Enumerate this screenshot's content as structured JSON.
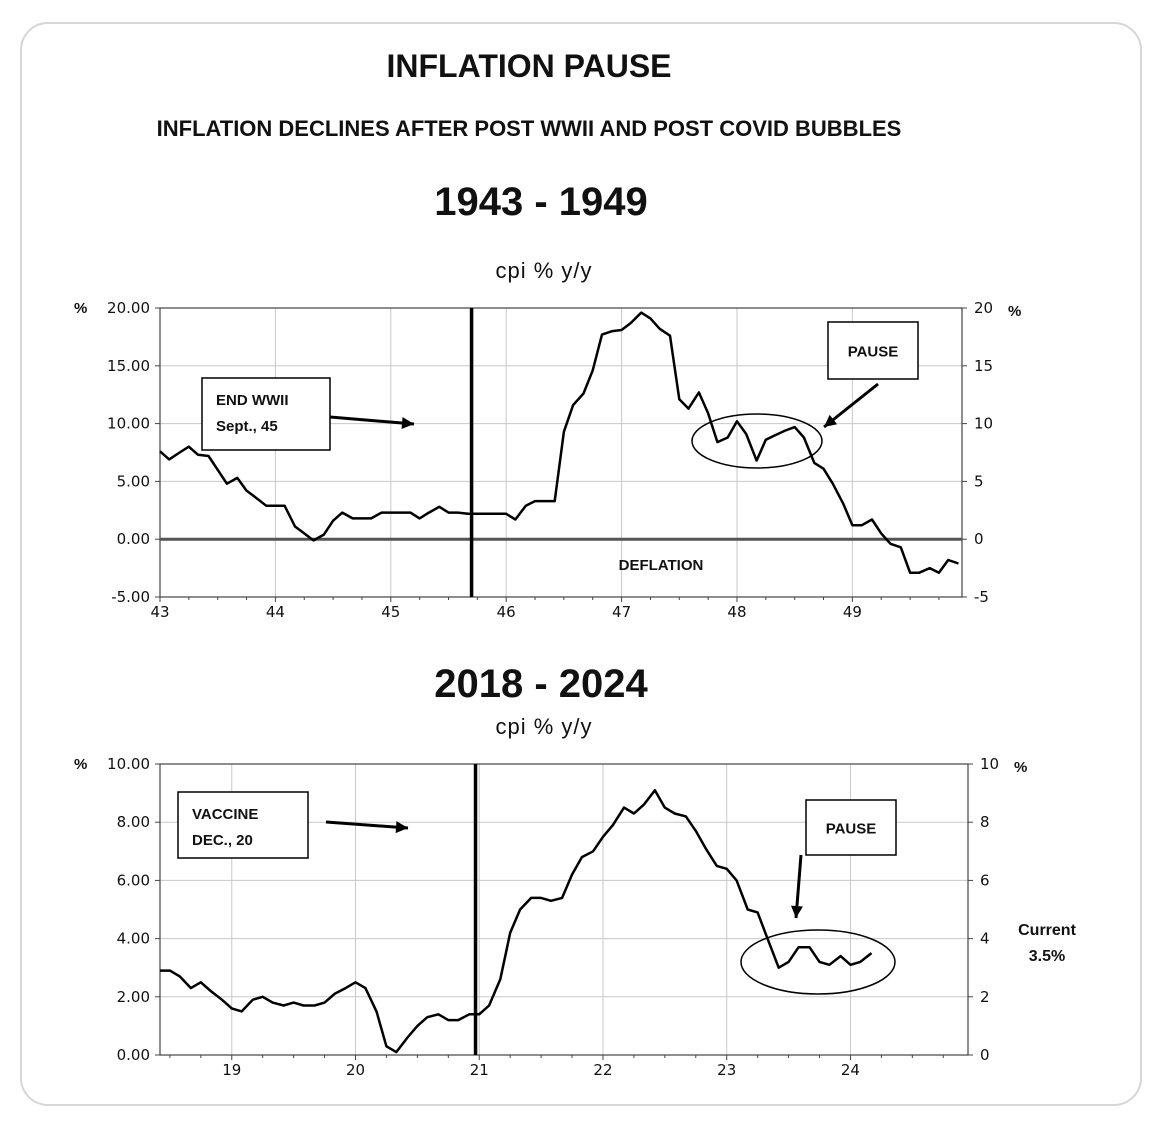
{
  "title": "INFLATION PAUSE",
  "subtitle": "INFLATION DECLINES AFTER POST WWII AND POST COVID BUBBLES",
  "chart_data": [
    {
      "type": "line",
      "period_title": "1943 - 1949",
      "unit_title": "cpi % y/y",
      "left_axis_unit": "%",
      "right_axis_unit": "%",
      "xlim": [
        43,
        49.95
      ],
      "ylim": [
        -5,
        20
      ],
      "x_ticks": [
        43,
        44,
        45,
        46,
        47,
        48,
        49
      ],
      "x_tick_labels": [
        "43",
        "44",
        "45",
        "46",
        "47",
        "48",
        "49"
      ],
      "y_ticks_left": [
        20,
        15,
        10,
        5,
        0,
        -5
      ],
      "y_tick_labels_left": [
        "20.00",
        "15.00",
        "10.00",
        "5.00",
        "0.00",
        "-5.00"
      ],
      "y_ticks_right": [
        20,
        15,
        10,
        5,
        0,
        -5
      ],
      "y_tick_labels_right": [
        "20",
        "15",
        "10",
        "5",
        "0",
        "-5"
      ],
      "grid": true,
      "reference_line_y": 0,
      "event_line_x": 45.7,
      "series": [
        {
          "name": "cpi % y/y",
          "x": [
            43.0,
            43.08,
            43.17,
            43.25,
            43.33,
            43.42,
            43.5,
            43.58,
            43.67,
            43.75,
            43.83,
            43.92,
            44.0,
            44.08,
            44.17,
            44.25,
            44.33,
            44.42,
            44.5,
            44.58,
            44.67,
            44.75,
            44.83,
            44.92,
            45.0,
            45.08,
            45.17,
            45.25,
            45.33,
            45.42,
            45.5,
            45.58,
            45.67,
            45.75,
            45.83,
            45.92,
            46.0,
            46.08,
            46.17,
            46.25,
            46.33,
            46.42,
            46.5,
            46.58,
            46.67,
            46.75,
            46.83,
            46.92,
            47.0,
            47.08,
            47.17,
            47.25,
            47.33,
            47.42,
            47.5,
            47.58,
            47.67,
            47.75,
            47.83,
            47.92,
            48.0,
            48.08,
            48.17,
            48.25,
            48.33,
            48.42,
            48.5,
            48.58,
            48.67,
            48.75,
            48.83,
            48.92,
            49.0,
            49.08,
            49.17,
            49.25,
            49.33,
            49.42,
            49.5,
            49.58,
            49.67,
            49.75,
            49.83,
            49.92
          ],
          "y": [
            7.6,
            6.9,
            7.5,
            8.0,
            7.3,
            7.2,
            6.0,
            4.8,
            5.3,
            4.2,
            3.6,
            2.9,
            2.9,
            2.9,
            1.1,
            0.5,
            -0.1,
            0.4,
            1.6,
            2.3,
            1.8,
            1.8,
            1.8,
            2.3,
            2.3,
            2.3,
            2.3,
            1.8,
            2.3,
            2.8,
            2.3,
            2.3,
            2.2,
            2.2,
            2.2,
            2.2,
            2.2,
            1.7,
            2.9,
            3.3,
            3.3,
            3.3,
            9.3,
            11.6,
            12.6,
            14.6,
            17.7,
            18.0,
            18.1,
            18.7,
            19.6,
            19.1,
            18.2,
            17.6,
            12.1,
            11.3,
            12.7,
            10.9,
            8.4,
            8.8,
            10.2,
            9.1,
            6.8,
            8.6,
            9.0,
            9.4,
            9.7,
            8.8,
            6.6,
            6.1,
            4.8,
            3.1,
            1.2,
            1.2,
            1.7,
            0.5,
            -0.4,
            -0.7,
            -2.9,
            -2.9,
            -2.5,
            -2.9,
            -1.8,
            -2.1
          ]
        }
      ],
      "annotations": {
        "event_box_lines": [
          "END WWII",
          "Sept., 45"
        ],
        "pause_box": "PAUSE",
        "deflation_label": "DEFLATION"
      }
    },
    {
      "type": "line",
      "period_title": "2018 - 2024",
      "unit_title": "cpi % y/y",
      "left_axis_unit": "%",
      "right_axis_unit": "%",
      "xlim": [
        18.42,
        24.95
      ],
      "ylim": [
        0,
        10
      ],
      "x_ticks": [
        19,
        20,
        21,
        22,
        23,
        24
      ],
      "x_tick_labels": [
        "19",
        "20",
        "21",
        "22",
        "23",
        "24"
      ],
      "y_ticks_left": [
        10,
        8,
        6,
        4,
        2,
        0
      ],
      "y_tick_labels_left": [
        "10.00",
        "8.00",
        "6.00",
        "4.00",
        "2.00",
        "0.00"
      ],
      "y_ticks_right": [
        10,
        8,
        6,
        4,
        2,
        0
      ],
      "y_tick_labels_right": [
        "10",
        "8",
        "6",
        "4",
        "2",
        "0"
      ],
      "grid": true,
      "event_line_x": 20.97,
      "series": [
        {
          "name": "cpi % y/y",
          "x": [
            18.42,
            18.5,
            18.58,
            18.67,
            18.75,
            18.83,
            18.92,
            19.0,
            19.08,
            19.17,
            19.25,
            19.33,
            19.42,
            19.5,
            19.58,
            19.67,
            19.75,
            19.83,
            19.92,
            20.0,
            20.08,
            20.17,
            20.25,
            20.33,
            20.42,
            20.5,
            20.58,
            20.67,
            20.75,
            20.83,
            20.92,
            21.0,
            21.08,
            21.17,
            21.25,
            21.33,
            21.42,
            21.5,
            21.58,
            21.67,
            21.75,
            21.83,
            21.92,
            22.0,
            22.08,
            22.17,
            22.25,
            22.33,
            22.42,
            22.5,
            22.58,
            22.67,
            22.75,
            22.83,
            22.92,
            23.0,
            23.08,
            23.17,
            23.25,
            23.33,
            23.42,
            23.5,
            23.58,
            23.67,
            23.75,
            23.83,
            23.92,
            24.0,
            24.08,
            24.17
          ],
          "y": [
            2.9,
            2.9,
            2.7,
            2.3,
            2.5,
            2.2,
            1.9,
            1.6,
            1.5,
            1.9,
            2.0,
            1.8,
            1.7,
            1.8,
            1.7,
            1.7,
            1.8,
            2.1,
            2.3,
            2.5,
            2.3,
            1.5,
            0.3,
            0.1,
            0.6,
            1.0,
            1.3,
            1.4,
            1.2,
            1.2,
            1.4,
            1.4,
            1.7,
            2.6,
            4.2,
            5.0,
            5.4,
            5.4,
            5.3,
            5.4,
            6.2,
            6.8,
            7.0,
            7.5,
            7.9,
            8.5,
            8.3,
            8.6,
            9.1,
            8.5,
            8.3,
            8.2,
            7.7,
            7.1,
            6.5,
            6.4,
            6.0,
            5.0,
            4.9,
            4.0,
            3.0,
            3.2,
            3.7,
            3.7,
            3.2,
            3.1,
            3.4,
            3.1,
            3.2,
            3.5
          ]
        }
      ],
      "annotations": {
        "event_box_lines": [
          "VACCINE",
          "DEC., 20"
        ],
        "pause_box": "PAUSE",
        "current_label_lines": [
          "Current",
          "3.5%"
        ]
      }
    }
  ]
}
